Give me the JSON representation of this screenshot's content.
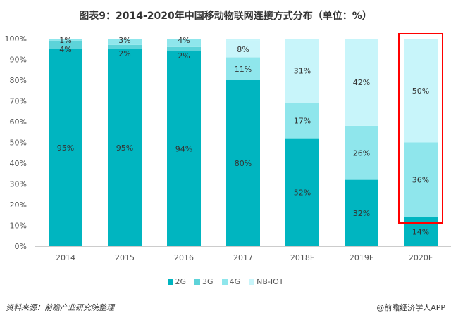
{
  "chart_data": {
    "type": "bar",
    "stacked": true,
    "title": "图表9：2014-2020年中国移动物联网连接方式分布（单位：%）",
    "categories": [
      "2014",
      "2015",
      "2016",
      "2017",
      "2018F",
      "2019F",
      "2020F"
    ],
    "series": [
      {
        "name": "2G",
        "color": "#00b5c0",
        "values": [
          95,
          95,
          94,
          80,
          52,
          32,
          14
        ]
      },
      {
        "name": "3G",
        "color": "#5dd3d9",
        "values": [
          4,
          2,
          2,
          0,
          0,
          0,
          0
        ]
      },
      {
        "name": "4G",
        "color": "#8fe6ec",
        "values": [
          1,
          3,
          4,
          11,
          17,
          26,
          36
        ]
      },
      {
        "name": "NB-IOT",
        "color": "#c8f5fa",
        "values": [
          0,
          0,
          0,
          8,
          31,
          42,
          50
        ]
      }
    ],
    "yticks": [
      "0%",
      "10%",
      "20%",
      "30%",
      "40%",
      "50%",
      "60%",
      "70%",
      "80%",
      "90%",
      "100%"
    ],
    "ylim": [
      0,
      100
    ],
    "grid": false,
    "legend": "bottom",
    "highlight": {
      "category": "2020F",
      "color": "#ff0000"
    }
  },
  "source": "资料来源：前瞻产业研究院整理",
  "credit": "@前瞻经济学人APP"
}
